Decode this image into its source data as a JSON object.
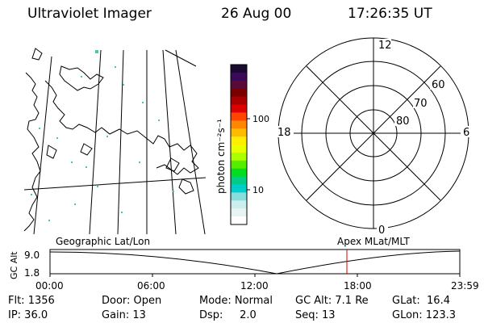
{
  "header": {
    "title": "Ultraviolet Imager",
    "date": "26 Aug 00",
    "time": "17:26:35 UT"
  },
  "colorbar": {
    "unit_label": "photon cm⁻²s⁻¹",
    "ticks": [
      "100",
      "10"
    ],
    "colors": [
      "#1a0a33",
      "#3a0a5a",
      "#5a0a3a",
      "#7a0000",
      "#aa0000",
      "#dd0000",
      "#ff4400",
      "#ff8800",
      "#ffbb00",
      "#ffee00",
      "#e8ff00",
      "#aaff00",
      "#55ee00",
      "#00dd22",
      "#00cc88",
      "#00cccc",
      "#88dddd",
      "#cceeee",
      "#e8f4f4",
      "#ffffff"
    ]
  },
  "polar_plot": {
    "label_top": "12",
    "label_left": "18",
    "label_right": "6",
    "label_bottom": "0",
    "lat_labels": [
      "60",
      "70",
      "80"
    ]
  },
  "timeline": {
    "left_label": "Geographic Lat/Lon",
    "right_label": "Apex MLat/MLT",
    "y_axis_label": "GC Alt",
    "y_ticks": [
      "9.0",
      "1.8"
    ],
    "x_ticks": [
      "00:00",
      "06:00",
      "12:00",
      "18:00",
      "23:59"
    ],
    "marker_time": "17:26",
    "marker_color": "#dd0000"
  },
  "info": {
    "flt": "Flt: 1356",
    "ip": "IP: 36.0",
    "door": "Door: Open",
    "gain": "Gain: 13",
    "mode": "Mode: Normal",
    "dsp": "Dsp:     2.0",
    "gc_alt": "GC Alt: 7.1 Re",
    "seq": "Seq: 13",
    "glat": "GLat:  16.4",
    "glon": "GLon: 123.3"
  }
}
